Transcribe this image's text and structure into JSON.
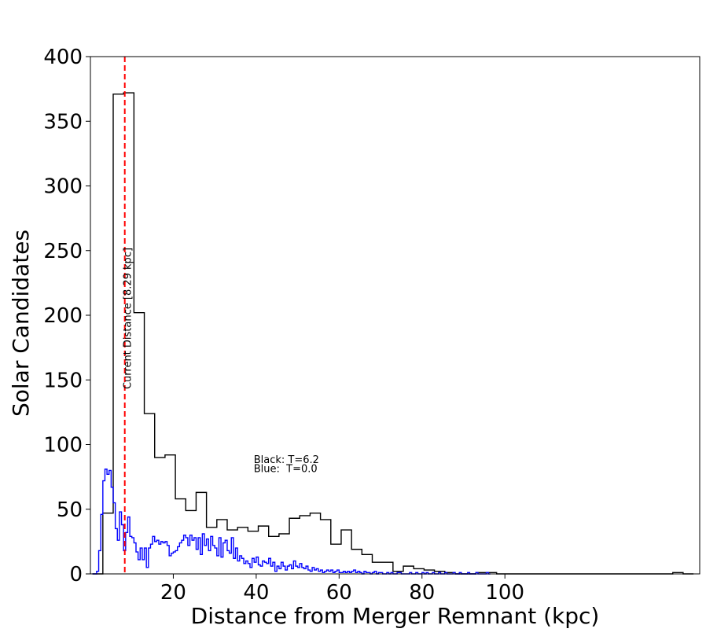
{
  "chart_data": {
    "type": "histogram",
    "title": "",
    "xlabel": "Distance from Merger Remnant (kpc)",
    "ylabel": "Solar Candidates",
    "xlim": [
      0,
      147
    ],
    "ylim": [
      0,
      400
    ],
    "xticks": [
      20,
      40,
      60,
      80,
      100
    ],
    "yticks": [
      0,
      50,
      100,
      150,
      200,
      250,
      300,
      350,
      400
    ],
    "grid": false,
    "annotations": [
      {
        "text": "Black: T=6.2",
        "x": 39.4,
        "y": 88
      },
      {
        "text": "Blue:  T=0.0",
        "x": 39.4,
        "y": 80
      },
      {
        "text": "Current Distance [8.29 kpc]",
        "x": 8.29,
        "y": 200,
        "rotation": 90
      }
    ],
    "vline": {
      "x": 8.29,
      "color": "#ff0000",
      "style": "dashed"
    },
    "series": [
      {
        "color": "#000000",
        "bin_width": 2.5,
        "x_start": 0.5,
        "counts": [
          0,
          47,
          371,
          372,
          202,
          124,
          90,
          92,
          58,
          49,
          63,
          36,
          42,
          34,
          36,
          33,
          37,
          29,
          31,
          43,
          45,
          47,
          42,
          23,
          34,
          19,
          15,
          9,
          9,
          2,
          6,
          4,
          3,
          2,
          1,
          0,
          0,
          1,
          1,
          0,
          0,
          0,
          0,
          0,
          0,
          0,
          0,
          0,
          0,
          0,
          0,
          0,
          0,
          0,
          0,
          0,
          1,
          0
        ]
      },
      {
        "color": "#0000ff",
        "bin_width": 0.5,
        "x_start": 0.5,
        "counts": [
          0,
          0,
          2,
          18,
          46,
          72,
          81,
          77,
          80,
          67,
          55,
          35,
          26,
          48,
          38,
          18,
          32,
          44,
          29,
          28,
          24,
          17,
          11,
          20,
          11,
          20,
          5,
          20,
          23,
          29,
          25,
          26,
          23,
          25,
          24,
          25,
          22,
          14,
          16,
          17,
          18,
          21,
          24,
          26,
          30,
          28,
          22,
          30,
          26,
          28,
          19,
          28,
          15,
          31,
          22,
          27,
          18,
          29,
          22,
          20,
          14,
          28,
          13,
          24,
          26,
          18,
          16,
          28,
          12,
          20,
          10,
          14,
          12,
          8,
          10,
          8,
          5,
          12,
          9,
          13,
          7,
          6,
          10,
          9,
          8,
          12,
          6,
          9,
          2,
          6,
          4,
          9,
          6,
          3,
          6,
          7,
          4,
          10,
          6,
          5,
          8,
          5,
          4,
          6,
          3,
          2,
          5,
          3,
          4,
          2,
          3,
          1,
          2,
          3,
          2,
          3,
          1,
          2,
          3,
          1,
          1,
          2,
          1,
          2,
          1,
          2,
          3,
          1,
          2,
          1,
          0,
          2,
          1,
          1,
          0,
          1,
          2,
          0,
          1,
          1,
          0,
          0,
          1,
          0,
          1,
          0,
          0,
          1,
          1,
          0,
          0,
          0,
          0,
          1,
          0,
          0,
          1,
          0,
          0,
          1,
          0,
          1,
          0,
          0,
          1,
          0,
          0,
          1,
          0,
          0,
          1,
          0,
          0,
          0,
          1,
          0,
          0,
          1,
          0,
          0,
          0,
          1,
          0,
          0,
          0,
          1,
          0,
          0,
          0,
          0,
          1,
          0
        ]
      }
    ]
  }
}
